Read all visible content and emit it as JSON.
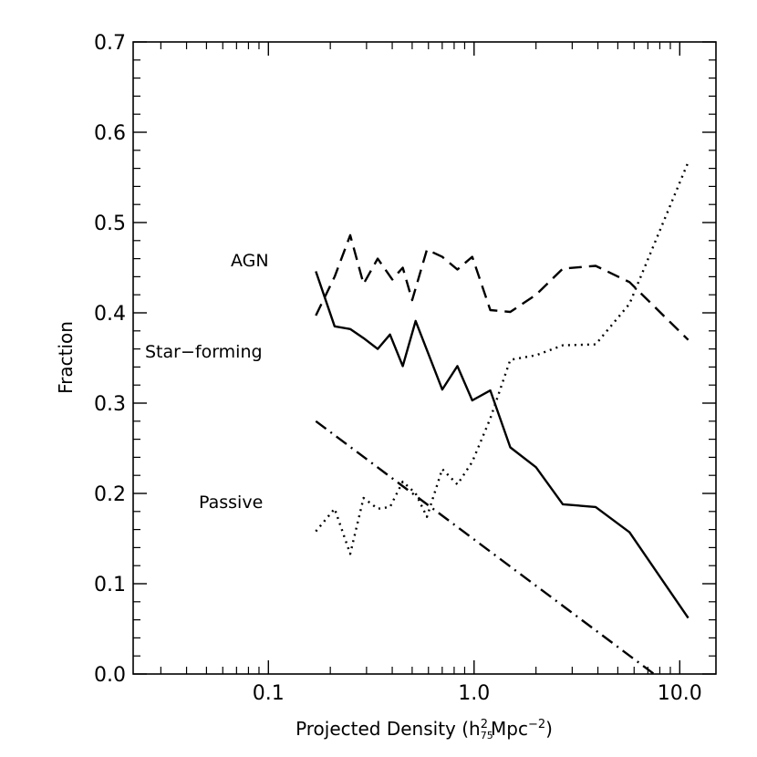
{
  "chart_data": {
    "type": "line",
    "title": "",
    "xlabel": "Projected Density (h75²Mpc⁻²)",
    "xlabel_parts": {
      "main": "Projected Density (h",
      "sub": "75",
      "sup": "2",
      "unit": "Mpc",
      "unit_sup": "−2",
      "close": ")"
    },
    "ylabel": "Fraction",
    "xscale": "log",
    "xlim": [
      0.022,
      15
    ],
    "ylim": [
      0.0,
      0.7
    ],
    "xticks": [
      0.1,
      1.0,
      10.0
    ],
    "xtick_labels": [
      "0.1",
      "1.0",
      "10.0"
    ],
    "yticks": [
      0.0,
      0.1,
      0.2,
      0.3,
      0.4,
      0.5,
      0.6,
      0.7
    ],
    "ytick_labels": [
      "0.0",
      "0.1",
      "0.2",
      "0.3",
      "0.4",
      "0.5",
      "0.6",
      "0.7"
    ],
    "grid": false,
    "series": [
      {
        "name": "AGN",
        "style": "dashed",
        "color": "#000000",
        "x": [
          0.17,
          0.21,
          0.25,
          0.29,
          0.34,
          0.4,
          0.45,
          0.5,
          0.59,
          0.7,
          0.83,
          0.98,
          1.2,
          1.5,
          2.0,
          2.7,
          3.9,
          5.7,
          11.0
        ],
        "y": [
          0.397,
          0.44,
          0.486,
          0.432,
          0.46,
          0.437,
          0.45,
          0.414,
          0.47,
          0.462,
          0.448,
          0.462,
          0.403,
          0.401,
          0.42,
          0.449,
          0.452,
          0.434,
          0.37
        ]
      },
      {
        "name": "Star-forming",
        "style": "solid",
        "color": "#000000",
        "x": [
          0.17,
          0.21,
          0.25,
          0.29,
          0.34,
          0.39,
          0.45,
          0.52,
          0.7,
          0.83,
          0.98,
          1.2,
          1.5,
          2.0,
          2.7,
          3.9,
          5.7,
          11.0
        ],
        "y": [
          0.446,
          0.385,
          0.382,
          0.372,
          0.36,
          0.376,
          0.341,
          0.391,
          0.315,
          0.341,
          0.303,
          0.314,
          0.251,
          0.229,
          0.188,
          0.185,
          0.157,
          0.062
        ]
      },
      {
        "name": "Passive",
        "style": "dotted",
        "color": "#000000",
        "x": [
          0.17,
          0.21,
          0.25,
          0.29,
          0.34,
          0.39,
          0.45,
          0.52,
          0.59,
          0.7,
          0.83,
          0.98,
          1.2,
          1.5,
          2.0,
          2.7,
          3.9,
          5.7,
          11.0
        ],
        "y": [
          0.158,
          0.183,
          0.133,
          0.195,
          0.183,
          0.185,
          0.213,
          0.2,
          0.174,
          0.227,
          0.21,
          0.235,
          0.283,
          0.348,
          0.353,
          0.364,
          0.365,
          0.41,
          0.567
        ]
      },
      {
        "style": "dash-dot",
        "color": "#000000",
        "x": [
          0.17,
          7.5
        ],
        "y": [
          0.28,
          0.0
        ]
      }
    ],
    "annotations": [
      "AGN",
      "Star−forming",
      "Passive"
    ]
  }
}
